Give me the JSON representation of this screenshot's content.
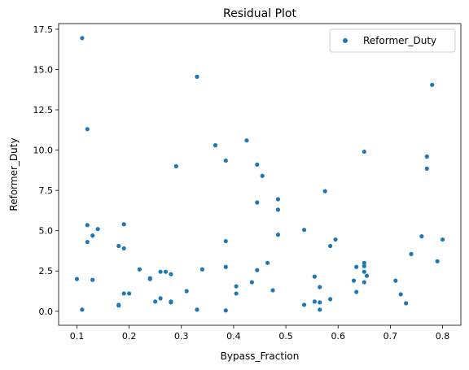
{
  "chart_data": {
    "type": "scatter",
    "title": "Residual Plot",
    "xlabel": "Bypass_Fraction",
    "ylabel": "Reformer_Duty",
    "xlim": [
      0.065,
      0.835
    ],
    "ylim": [
      -0.87,
      17.85
    ],
    "xticks": [
      0.1,
      0.2,
      0.3,
      0.4,
      0.5,
      0.6,
      0.7,
      0.8
    ],
    "xtick_labels": [
      "0.1",
      "0.2",
      "0.3",
      "0.4",
      "0.5",
      "0.6",
      "0.7",
      "0.8"
    ],
    "yticks": [
      0.0,
      2.5,
      5.0,
      7.5,
      10.0,
      12.5,
      15.0,
      17.5
    ],
    "ytick_labels": [
      "0.0",
      "2.5",
      "5.0",
      "7.5",
      "10.0",
      "12.5",
      "15.0",
      "17.5"
    ],
    "grid": false,
    "legend_position": "top-right",
    "series": [
      {
        "name": "Reformer_Duty",
        "color": "#1f77b4",
        "points": [
          [
            0.11,
            16.95
          ],
          [
            0.12,
            11.3
          ],
          [
            0.12,
            5.35
          ],
          [
            0.14,
            5.1
          ],
          [
            0.13,
            4.7
          ],
          [
            0.12,
            4.3
          ],
          [
            0.1,
            2.0
          ],
          [
            0.13,
            1.95
          ],
          [
            0.11,
            0.1
          ],
          [
            0.18,
            4.05
          ],
          [
            0.19,
            5.4
          ],
          [
            0.19,
            3.9
          ],
          [
            0.19,
            1.1
          ],
          [
            0.2,
            1.1
          ],
          [
            0.18,
            0.4
          ],
          [
            0.18,
            0.35
          ],
          [
            0.22,
            2.6
          ],
          [
            0.24,
            2.05
          ],
          [
            0.24,
            2.0
          ],
          [
            0.26,
            2.45
          ],
          [
            0.27,
            2.45
          ],
          [
            0.28,
            2.3
          ],
          [
            0.26,
            0.8
          ],
          [
            0.25,
            0.6
          ],
          [
            0.28,
            0.6
          ],
          [
            0.28,
            0.55
          ],
          [
            0.29,
            9.0
          ],
          [
            0.31,
            1.25
          ],
          [
            0.33,
            14.55
          ],
          [
            0.34,
            2.6
          ],
          [
            0.33,
            0.1
          ],
          [
            0.365,
            10.3
          ],
          [
            0.385,
            9.35
          ],
          [
            0.385,
            4.35
          ],
          [
            0.385,
            2.75
          ],
          [
            0.385,
            0.05
          ],
          [
            0.405,
            1.55
          ],
          [
            0.405,
            1.1
          ],
          [
            0.425,
            10.6
          ],
          [
            0.445,
            9.1
          ],
          [
            0.455,
            8.4
          ],
          [
            0.445,
            6.75
          ],
          [
            0.445,
            2.55
          ],
          [
            0.435,
            1.8
          ],
          [
            0.465,
            3.0
          ],
          [
            0.475,
            1.3
          ],
          [
            0.485,
            6.95
          ],
          [
            0.485,
            6.3
          ],
          [
            0.485,
            4.75
          ],
          [
            0.535,
            5.05
          ],
          [
            0.555,
            2.15
          ],
          [
            0.565,
            1.5
          ],
          [
            0.535,
            0.4
          ],
          [
            0.555,
            0.6
          ],
          [
            0.565,
            0.55
          ],
          [
            0.565,
            0.1
          ],
          [
            0.575,
            7.45
          ],
          [
            0.585,
            4.05
          ],
          [
            0.595,
            4.45
          ],
          [
            0.585,
            0.75
          ],
          [
            0.635,
            2.75
          ],
          [
            0.63,
            1.9
          ],
          [
            0.635,
            1.2
          ],
          [
            0.65,
            9.9
          ],
          [
            0.65,
            3.0
          ],
          [
            0.65,
            2.8
          ],
          [
            0.65,
            2.45
          ],
          [
            0.65,
            1.8
          ],
          [
            0.655,
            2.2
          ],
          [
            0.71,
            1.9
          ],
          [
            0.72,
            1.05
          ],
          [
            0.73,
            0.5
          ],
          [
            0.74,
            3.55
          ],
          [
            0.76,
            4.65
          ],
          [
            0.77,
            9.6
          ],
          [
            0.77,
            8.85
          ],
          [
            0.78,
            14.05
          ],
          [
            0.79,
            3.1
          ],
          [
            0.8,
            4.45
          ]
        ]
      }
    ]
  }
}
